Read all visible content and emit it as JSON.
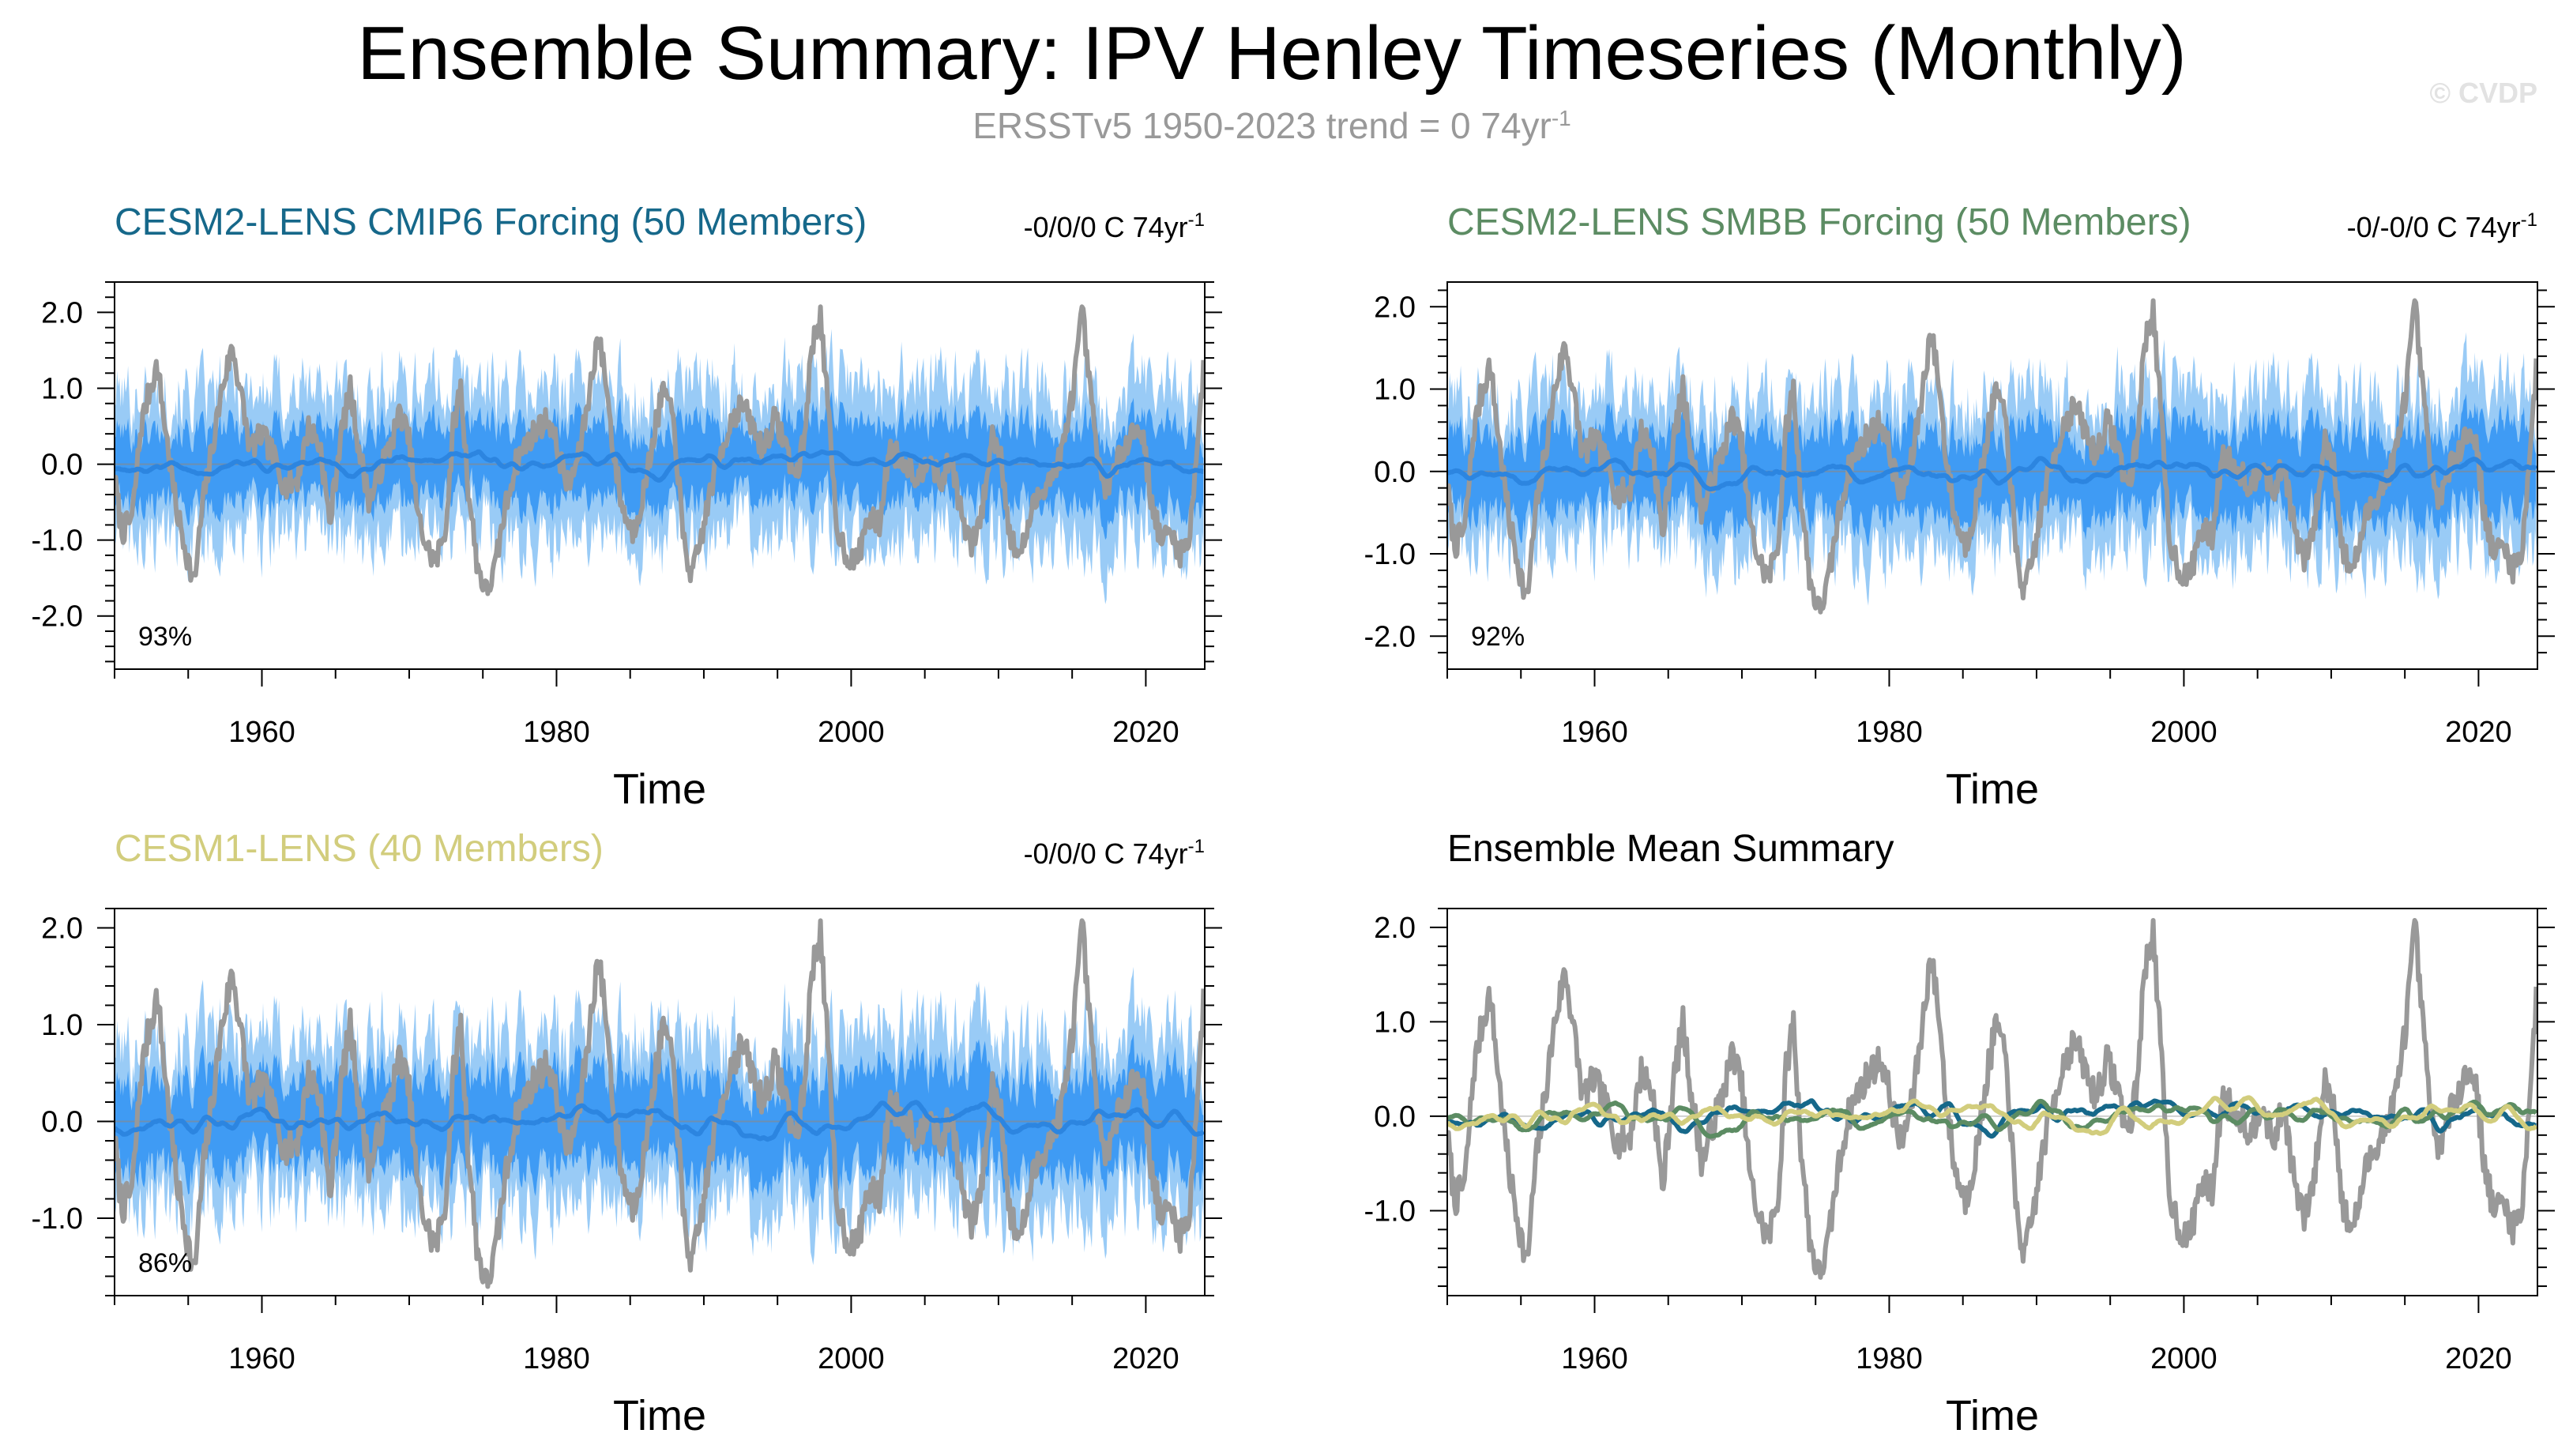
{
  "title": "Ensemble Summary: IPV Henley Timeseries (Monthly)",
  "subtitle": {
    "main": "ERSSTv5 1950-2023 trend = 0 74yr",
    "superscript": "-1"
  },
  "watermark": "© CVDP",
  "colors": {
    "observed": "#999999",
    "cesm2_cmip6": "#16688a",
    "cesm2_smbb": "#5c8c63",
    "cesm1": "#d2cd7d",
    "band_outer": "#99cbf6",
    "band_inner": "#3f9bf4",
    "ens_mean": "#2c85e0"
  },
  "chart_data": [
    {
      "id": "cesm2-cmip6",
      "type": "line",
      "title": "CESM2-LENS CMIP6 Forcing (50 Members)",
      "title_color": "#16688a",
      "trend_text": "-0/0/0 C 74yr",
      "trend_sup": "-1",
      "percent_label": "93%",
      "xlabel": "Time",
      "ylabel": "",
      "xlim": [
        1950,
        2024
      ],
      "ylim": [
        -2.7,
        2.4
      ],
      "x_ticks": [
        1960,
        1980,
        2000,
        2020
      ],
      "x_tick_labels": [
        "1960",
        "1980",
        "2000",
        "2020"
      ],
      "y_ticks": [
        2.0,
        1.0,
        0.0,
        -1.0,
        -2.0
      ],
      "y_tick_labels": [
        "2.0",
        "1.0",
        "0.0",
        "-1.0",
        "-2.0"
      ],
      "legend": "none",
      "series": [
        {
          "name": "ensemble 10-90% range",
          "kind": "band",
          "spread_scale": 1.6
        },
        {
          "name": "ensemble 25-75% range",
          "kind": "band",
          "spread_scale": 0.8
        },
        {
          "name": "ERSSTv5 observed",
          "kind": "line"
        },
        {
          "name": "ensemble mean",
          "kind": "line",
          "seed": 11
        }
      ]
    },
    {
      "id": "cesm2-smbb",
      "type": "line",
      "title": "CESM2-LENS SMBB Forcing (50 Members)",
      "title_color": "#5c8c63",
      "trend_text": "-0/-0/0 C 74yr",
      "trend_sup": "-1",
      "percent_label": "92%",
      "xlabel": "Time",
      "ylabel": "",
      "xlim": [
        1950,
        2024
      ],
      "ylim": [
        -2.4,
        2.3
      ],
      "x_ticks": [
        1960,
        1980,
        2000,
        2020
      ],
      "x_tick_labels": [
        "1960",
        "1980",
        "2000",
        "2020"
      ],
      "y_ticks": [
        2.0,
        1.0,
        0.0,
        -1.0,
        -2.0
      ],
      "y_tick_labels": [
        "2.0",
        "1.0",
        "0.0",
        "-1.0",
        "-2.0"
      ],
      "legend": "none",
      "series": [
        {
          "name": "ensemble 10-90% range",
          "kind": "band",
          "spread_scale": 1.5
        },
        {
          "name": "ensemble 25-75% range",
          "kind": "band",
          "spread_scale": 0.8
        },
        {
          "name": "ERSSTv5 observed",
          "kind": "line"
        },
        {
          "name": "ensemble mean",
          "kind": "line",
          "seed": 23
        }
      ]
    },
    {
      "id": "cesm1",
      "type": "line",
      "title": "CESM1-LENS (40 Members)",
      "title_color": "#d2cd7d",
      "trend_text": "-0/0/0 C 74yr",
      "trend_sup": "-1",
      "percent_label": "86%",
      "xlabel": "Time",
      "ylabel": "",
      "xlim": [
        1950,
        2024
      ],
      "ylim": [
        -1.8,
        2.2
      ],
      "x_ticks": [
        1960,
        1980,
        2000,
        2020
      ],
      "x_tick_labels": [
        "1960",
        "1980",
        "2000",
        "2020"
      ],
      "y_ticks": [
        2.0,
        1.0,
        0.0,
        -1.0
      ],
      "y_tick_labels": [
        "2.0",
        "1.0",
        "0.0",
        "-1.0"
      ],
      "legend": "none",
      "series": [
        {
          "name": "ensemble 10-90% range",
          "kind": "band",
          "spread_scale": 1.4
        },
        {
          "name": "ensemble 25-75% range",
          "kind": "band",
          "spread_scale": 0.75
        },
        {
          "name": "ERSSTv5 observed",
          "kind": "line"
        },
        {
          "name": "ensemble mean",
          "kind": "line",
          "seed": 37
        }
      ]
    },
    {
      "id": "ens-mean-summary",
      "type": "line",
      "title": "Ensemble Mean Summary",
      "title_color": "#000000",
      "trend_text": "",
      "trend_sup": "",
      "percent_label": "",
      "xlabel": "Time",
      "ylabel": "",
      "xlim": [
        1950,
        2024
      ],
      "ylim": [
        -1.9,
        2.2
      ],
      "x_ticks": [
        1960,
        1980,
        2000,
        2020
      ],
      "x_tick_labels": [
        "1960",
        "1980",
        "2000",
        "2020"
      ],
      "y_ticks": [
        2.0,
        1.0,
        0.0,
        -1.0
      ],
      "y_tick_labels": [
        "2.0",
        "1.0",
        "0.0",
        "-1.0"
      ],
      "legend": "none",
      "series": [
        {
          "name": "ERSSTv5 observed",
          "kind": "line",
          "color": "#999999"
        },
        {
          "name": "CESM2-LENS CMIP6 Forcing ensemble mean",
          "kind": "line",
          "color": "#16688a",
          "seed": 11
        },
        {
          "name": "CESM2-LENS SMBB Forcing ensemble mean",
          "kind": "line",
          "color": "#5c8c63",
          "seed": 23
        },
        {
          "name": "CESM1-LENS ensemble mean",
          "kind": "line",
          "color": "#d2cd7d",
          "seed": 37
        }
      ]
    }
  ],
  "observed_anchors": [
    [
      1950.0,
      -0.2
    ],
    [
      1950.5,
      -0.9
    ],
    [
      1951.2,
      -0.7
    ],
    [
      1951.8,
      0.5
    ],
    [
      1952.4,
      1.0
    ],
    [
      1952.9,
      1.3
    ],
    [
      1953.5,
      0.4
    ],
    [
      1954.2,
      -0.6
    ],
    [
      1954.8,
      -1.1
    ],
    [
      1955.4,
      -1.6
    ],
    [
      1956.0,
      -0.5
    ],
    [
      1956.7,
      0.3
    ],
    [
      1957.3,
      1.0
    ],
    [
      1958.0,
      1.55
    ],
    [
      1958.6,
      0.9
    ],
    [
      1959.2,
      0.2
    ],
    [
      1960.0,
      0.4
    ],
    [
      1960.8,
      0.1
    ],
    [
      1961.6,
      -0.3
    ],
    [
      1962.4,
      -0.2
    ],
    [
      1963.2,
      0.5
    ],
    [
      1964.0,
      0.2
    ],
    [
      1964.6,
      -0.8
    ],
    [
      1965.3,
      0.3
    ],
    [
      1966.0,
      1.0
    ],
    [
      1966.6,
      0.2
    ],
    [
      1967.3,
      -0.5
    ],
    [
      1968.0,
      -0.1
    ],
    [
      1968.8,
      0.3
    ],
    [
      1969.4,
      0.7
    ],
    [
      1970.0,
      0.3
    ],
    [
      1970.6,
      -0.7
    ],
    [
      1971.2,
      -1.1
    ],
    [
      1971.8,
      -1.3
    ],
    [
      1972.5,
      -0.8
    ],
    [
      1973.0,
      0.5
    ],
    [
      1973.5,
      1.0
    ],
    [
      1974.0,
      -0.3
    ],
    [
      1974.6,
      -1.3
    ],
    [
      1975.2,
      -1.7
    ],
    [
      1975.8,
      -1.4
    ],
    [
      1976.5,
      -0.6
    ],
    [
      1977.2,
      0.0
    ],
    [
      1978.0,
      0.3
    ],
    [
      1978.8,
      0.5
    ],
    [
      1979.5,
      0.6
    ],
    [
      1980.2,
      0.1
    ],
    [
      1980.8,
      -0.3
    ],
    [
      1981.5,
      0.1
    ],
    [
      1982.2,
      0.9
    ],
    [
      1982.8,
      1.7
    ],
    [
      1983.3,
      1.2
    ],
    [
      1983.9,
      0.1
    ],
    [
      1984.5,
      -0.6
    ],
    [
      1985.2,
      -0.9
    ],
    [
      1986.0,
      -0.3
    ],
    [
      1986.7,
      0.5
    ],
    [
      1987.3,
      1.0
    ],
    [
      1988.0,
      0.5
    ],
    [
      1988.6,
      -1.0
    ],
    [
      1989.2,
      -1.5
    ],
    [
      1989.9,
      -0.9
    ],
    [
      1990.5,
      -0.3
    ],
    [
      1991.2,
      0.2
    ],
    [
      1991.9,
      0.6
    ],
    [
      1992.6,
      0.8
    ],
    [
      1993.3,
      0.5
    ],
    [
      1994.0,
      0.2
    ],
    [
      1994.8,
      0.6
    ],
    [
      1995.5,
      0.3
    ],
    [
      1996.2,
      -0.2
    ],
    [
      1996.8,
      0.3
    ],
    [
      1997.3,
      1.5
    ],
    [
      1997.9,
      2.0
    ],
    [
      1998.4,
      0.8
    ],
    [
      1999.0,
      -0.8
    ],
    [
      1999.7,
      -1.2
    ],
    [
      2000.4,
      -1.3
    ],
    [
      2001.1,
      -0.7
    ],
    [
      2001.9,
      -0.8
    ],
    [
      2002.6,
      0.2
    ],
    [
      2003.2,
      0.1
    ],
    [
      2003.9,
      0.0
    ],
    [
      2004.6,
      -0.2
    ],
    [
      2005.3,
      0.2
    ],
    [
      2006.0,
      -0.3
    ],
    [
      2006.8,
      0.1
    ],
    [
      2007.5,
      -0.7
    ],
    [
      2008.2,
      -1.1
    ],
    [
      2008.9,
      -0.6
    ],
    [
      2009.6,
      0.4
    ],
    [
      2010.2,
      0.1
    ],
    [
      2010.8,
      -1.0
    ],
    [
      2011.5,
      -1.2
    ],
    [
      2012.3,
      -0.6
    ],
    [
      2013.0,
      -0.3
    ],
    [
      2013.8,
      -0.1
    ],
    [
      2014.5,
      0.3
    ],
    [
      2015.0,
      0.9
    ],
    [
      2015.7,
      2.0
    ],
    [
      2016.3,
      0.8
    ],
    [
      2017.0,
      -0.3
    ],
    [
      2017.7,
      -0.2
    ],
    [
      2018.4,
      0.2
    ],
    [
      2019.0,
      0.4
    ],
    [
      2019.7,
      0.5
    ],
    [
      2020.4,
      -0.5
    ],
    [
      2021.0,
      -1.0
    ],
    [
      2021.7,
      -0.9
    ],
    [
      2022.4,
      -1.2
    ],
    [
      2023.0,
      -0.9
    ],
    [
      2023.5,
      0.3
    ],
    [
      2024.0,
      1.4
    ]
  ]
}
